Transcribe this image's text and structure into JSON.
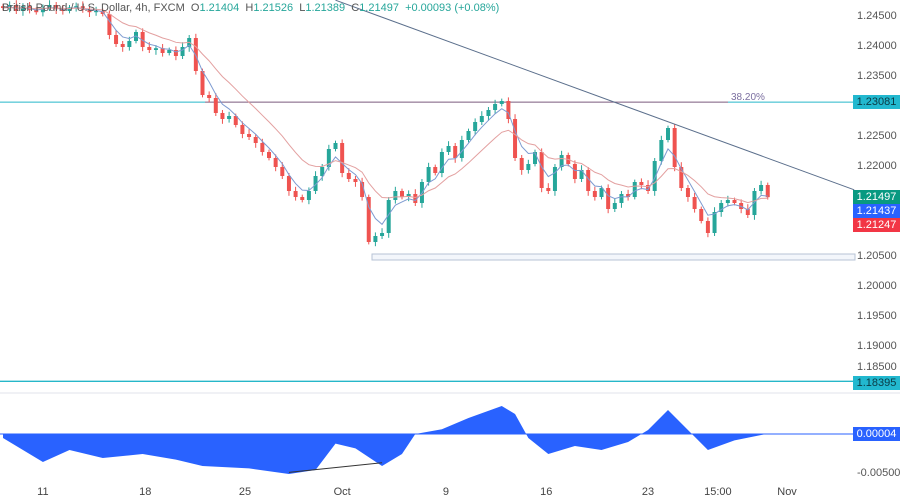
{
  "legend": {
    "symbol": "British Pound / U.S. Dollar, 4h, FXCM",
    "open_label": "O",
    "open": "1.21404",
    "high_label": "H",
    "high": "1.21526",
    "low_label": "L",
    "low": "1.21389",
    "close_label": "C",
    "close": "1.21497",
    "change": "+0.00093 (+0.08%)"
  },
  "colors": {
    "up": "#26a69a",
    "down": "#ef5350",
    "fast_ma": "#7e9bd1",
    "slow_ma": "#e3a0a0",
    "trendline": "#5b6f8c",
    "level": "#26b7c9",
    "fib": "#7b5a7e",
    "osc": "#2962ff"
  },
  "chart_data": {
    "type": "candlestick",
    "price_axis": {
      "ticks": [
        "1.24500",
        "1.24000",
        "1.23500",
        "1.22500",
        "1.22000",
        "1.20500",
        "1.20000",
        "1.19500",
        "1.19000",
        "1.18500"
      ],
      "range": [
        1.1795,
        1.2478
      ]
    },
    "closes": [
      1.2465,
      1.247,
      1.246,
      1.2468,
      1.2462,
      1.2458,
      1.2465,
      1.247,
      1.2463,
      1.246,
      1.2466,
      1.2468,
      1.2462,
      1.2458,
      1.246,
      1.2455,
      1.242,
      1.2405,
      1.24,
      1.241,
      1.2425,
      1.24,
      1.2395,
      1.2398,
      1.239,
      1.2395,
      1.2385,
      1.24,
      1.2415,
      1.236,
      1.232,
      1.2315,
      1.229,
      1.228,
      1.2285,
      1.227,
      1.2255,
      1.225,
      1.224,
      1.2225,
      1.2215,
      1.22,
      1.2185,
      1.216,
      1.215,
      1.2145,
      1.216,
      1.2185,
      1.22,
      1.223,
      1.224,
      1.219,
      1.218,
      1.2175,
      1.215,
      1.2075,
      1.2085,
      1.209,
      1.2145,
      1.216,
      1.215,
      1.2155,
      1.214,
      1.2175,
      1.22,
      1.219,
      1.2225,
      1.2235,
      1.2215,
      1.2245,
      1.226,
      1.2275,
      1.2285,
      1.2295,
      1.2305,
      1.231,
      1.228,
      1.2215,
      1.2195,
      1.2205,
      1.2225,
      1.2165,
      1.216,
      1.22,
      1.222,
      1.2205,
      1.218,
      1.2195,
      1.216,
      1.215,
      1.2165,
      1.213,
      1.214,
      1.2155,
      1.215,
      1.2175,
      1.217,
      1.216,
      1.221,
      1.2245,
      1.2265,
      1.22,
      1.2165,
      1.215,
      1.213,
      1.211,
      1.209,
      1.2125,
      1.214,
      1.2145,
      1.214,
      1.213,
      1.212,
      1.216,
      1.217,
      1.21497
    ],
    "x_ticks": [
      {
        "label": "11",
        "i": 6
      },
      {
        "label": "18",
        "i": 21.4
      },
      {
        "label": "25",
        "i": 36.4
      },
      {
        "label": "Oct",
        "i": 51
      },
      {
        "label": "9",
        "i": 66.6
      },
      {
        "label": "16",
        "i": 81.7
      },
      {
        "label": "23",
        "i": 97
      },
      {
        "label": "15:00",
        "i": 107.5
      },
      {
        "label": "Nov",
        "i": 117.9
      }
    ],
    "price_tags": [
      {
        "value": "1.21497",
        "color": "#089981"
      },
      {
        "value": "1.21437",
        "color": "#2962ff"
      },
      {
        "value": "1.21247",
        "color": "#f23645"
      }
    ],
    "levels": [
      {
        "value": 1.23081,
        "tag": "1.23081",
        "fib_label": "38.20%"
      },
      {
        "value": 1.18395,
        "tag": "1.18395"
      }
    ],
    "support_zone": [
      1.2045,
      1.2055
    ],
    "trendline": [
      {
        "i": 50,
        "price": 1.2478
      },
      {
        "i": 128,
        "price": 1.2162
      }
    ],
    "oscillator": {
      "axis_ticks": [
        "-0.00500"
      ],
      "current": "0.00004",
      "range": [
        -0.0065,
        0.0045
      ],
      "points": [
        [
          0,
          -0.0005
        ],
        [
          6,
          -0.0035
        ],
        [
          10,
          -0.002
        ],
        [
          15,
          -0.003
        ],
        [
          21,
          -0.0025
        ],
        [
          26,
          -0.0032
        ],
        [
          30,
          -0.004
        ],
        [
          37,
          -0.0043
        ],
        [
          43,
          -0.005
        ],
        [
          47,
          -0.0045
        ],
        [
          50,
          -0.0012
        ],
        [
          53,
          -0.0018
        ],
        [
          57,
          -0.004
        ],
        [
          60,
          -0.0025
        ],
        [
          62,
          0
        ],
        [
          66,
          0.0006
        ],
        [
          70,
          0.002
        ],
        [
          75,
          0.0035
        ],
        [
          77,
          0.0025
        ],
        [
          79,
          -0.0005
        ],
        [
          82,
          -0.0025
        ],
        [
          86,
          -0.0015
        ],
        [
          90,
          -0.002
        ],
        [
          94,
          -0.001
        ],
        [
          97,
          0.0005
        ],
        [
          100,
          0.003
        ],
        [
          103,
          0.0005
        ],
        [
          106,
          -0.002
        ],
        [
          110,
          -0.0008
        ],
        [
          115,
          4e-05
        ]
      ],
      "divergence": [
        {
          "i": 43,
          "v": -0.0048
        },
        {
          "i": 57,
          "v": -0.0036
        }
      ]
    }
  }
}
